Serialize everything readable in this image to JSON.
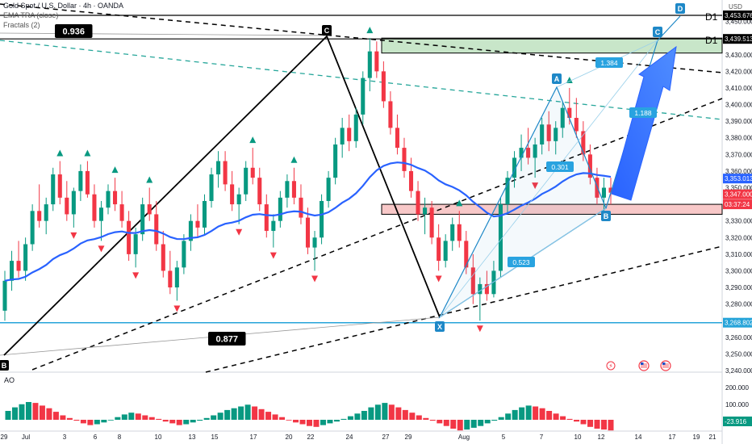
{
  "header": {
    "symbol_line": "Gold Spot / U.S. Dollar · 4h · OANDA",
    "indicator_line": "EMA TRA (close)",
    "fractals_line": "Fractals (2)",
    "currency": "USD"
  },
  "price_tags": {
    "top": "3,453.676",
    "d1": "3,439.513",
    "current_a": "3,353.013",
    "current_b": "3,347.000",
    "countdown": "03:37:24",
    "support": "3,268.802",
    "ao_value": "-23.916"
  },
  "labels": {
    "fib_upper": "0.936",
    "fib_lower": "0.877",
    "d1": "D1",
    "ratio_1384": "1.384",
    "ratio_0301": "0.301",
    "ratio_0523": "0.523",
    "ratio_box": "1.188",
    "point_B_left": "B",
    "point_C": "C",
    "point_X": "X",
    "point_A": "A",
    "point_B_right": "B",
    "point_C_right": "C",
    "point_D": "D",
    "ao_label": "AO"
  },
  "chart_data": {
    "type": "candlestick",
    "symbol": "XAUUSD",
    "timeframe": "4h",
    "y_axis": {
      "min": 3240,
      "max": 3460,
      "ticks": [
        3450,
        3440,
        3430,
        3420,
        3410,
        3400,
        3390,
        3380,
        3370,
        3360,
        3350,
        3340,
        3330,
        3320,
        3310,
        3300,
        3290,
        3280,
        3270,
        3260,
        3250,
        3240
      ]
    },
    "y_tick_labels": [
      "3,450.000",
      "3,440.000",
      "3,430.000",
      "3,420.000",
      "3,410.000",
      "3,400.000",
      "3,390.000",
      "3,380.000",
      "3,370.000",
      "3,360.000",
      "3,350.000",
      "3,340.000",
      "3,330.000",
      "3,320.000",
      "3,310.000",
      "3,300.000",
      "3,290.000",
      "3,280.000",
      "3,270.000",
      "3,260.000",
      "3,250.000",
      "3,240.000"
    ],
    "x_tick_labels": [
      "29",
      "Jul",
      "3",
      "6",
      "8",
      "10",
      "13",
      "15",
      "17",
      "20",
      "22",
      "24",
      "27",
      "29",
      "Aug",
      "5",
      "7",
      "10",
      "12",
      "14",
      "17",
      "19",
      "21"
    ],
    "ao_ticks": [
      "200.000",
      "100.000",
      "0.000"
    ],
    "key_levels": [
      {
        "label": "D1",
        "price": 3453.676
      },
      {
        "label": "D1",
        "price": 3439.513
      },
      {
        "label": "support",
        "price": 3268.802
      }
    ],
    "harmonic_points": [
      {
        "label": "X",
        "price": 3268
      },
      {
        "label": "A",
        "price": 3409
      },
      {
        "label": "B",
        "price": 3337
      },
      {
        "label": "C",
        "price": 3440
      },
      {
        "label": "D",
        "price": 3458
      }
    ],
    "zones": [
      {
        "name": "resistance",
        "top": 3440,
        "bottom": 3431,
        "color": "#c8e6c9"
      },
      {
        "name": "support",
        "top": 3340,
        "bottom": 3334,
        "color": "#f8c8c8"
      }
    ],
    "candles": [
      [
        3276,
        3300,
        3270,
        3294
      ],
      [
        3294,
        3312,
        3288,
        3306
      ],
      [
        3306,
        3318,
        3296,
        3300
      ],
      [
        3300,
        3320,
        3294,
        3316
      ],
      [
        3316,
        3340,
        3312,
        3336
      ],
      [
        3336,
        3352,
        3326,
        3330
      ],
      [
        3330,
        3344,
        3322,
        3340
      ],
      [
        3340,
        3362,
        3336,
        3358
      ],
      [
        3358,
        3366,
        3340,
        3344
      ],
      [
        3344,
        3354,
        3330,
        3334
      ],
      [
        3334,
        3350,
        3326,
        3348
      ],
      [
        3348,
        3364,
        3342,
        3360
      ],
      [
        3360,
        3366,
        3344,
        3346
      ],
      [
        3346,
        3352,
        3326,
        3330
      ],
      [
        3330,
        3342,
        3318,
        3338
      ],
      [
        3338,
        3352,
        3334,
        3348
      ],
      [
        3348,
        3356,
        3336,
        3340
      ],
      [
        3340,
        3348,
        3326,
        3330
      ],
      [
        3330,
        3336,
        3306,
        3310
      ],
      [
        3310,
        3326,
        3302,
        3322
      ],
      [
        3322,
        3344,
        3318,
        3340
      ],
      [
        3340,
        3350,
        3330,
        3334
      ],
      [
        3334,
        3342,
        3312,
        3316
      ],
      [
        3316,
        3324,
        3296,
        3300
      ],
      [
        3300,
        3312,
        3286,
        3290
      ],
      [
        3290,
        3306,
        3282,
        3302
      ],
      [
        3302,
        3322,
        3298,
        3318
      ],
      [
        3318,
        3334,
        3312,
        3330
      ],
      [
        3330,
        3340,
        3320,
        3326
      ],
      [
        3326,
        3346,
        3322,
        3342
      ],
      [
        3342,
        3362,
        3338,
        3358
      ],
      [
        3358,
        3372,
        3350,
        3366
      ],
      [
        3366,
        3372,
        3348,
        3352
      ],
      [
        3352,
        3360,
        3336,
        3340
      ],
      [
        3340,
        3350,
        3328,
        3346
      ],
      [
        3346,
        3366,
        3342,
        3362
      ],
      [
        3362,
        3374,
        3352,
        3356
      ],
      [
        3356,
        3362,
        3336,
        3340
      ],
      [
        3340,
        3346,
        3320,
        3324
      ],
      [
        3324,
        3334,
        3314,
        3330
      ],
      [
        3330,
        3348,
        3326,
        3344
      ],
      [
        3344,
        3358,
        3338,
        3354
      ],
      [
        3354,
        3362,
        3340,
        3344
      ],
      [
        3344,
        3352,
        3328,
        3332
      ],
      [
        3332,
        3338,
        3310,
        3314
      ],
      [
        3314,
        3324,
        3300,
        3320
      ],
      [
        3320,
        3346,
        3316,
        3342
      ],
      [
        3342,
        3360,
        3338,
        3356
      ],
      [
        3356,
        3380,
        3352,
        3376
      ],
      [
        3376,
        3392,
        3368,
        3386
      ],
      [
        3386,
        3394,
        3372,
        3378
      ],
      [
        3378,
        3398,
        3374,
        3394
      ],
      [
        3394,
        3420,
        3388,
        3416
      ],
      [
        3416,
        3440,
        3408,
        3432
      ],
      [
        3432,
        3438,
        3416,
        3420
      ],
      [
        3420,
        3426,
        3398,
        3402
      ],
      [
        3402,
        3408,
        3382,
        3386
      ],
      [
        3386,
        3394,
        3370,
        3374
      ],
      [
        3374,
        3380,
        3356,
        3360
      ],
      [
        3360,
        3368,
        3344,
        3348
      ],
      [
        3348,
        3354,
        3330,
        3334
      ],
      [
        3334,
        3344,
        3322,
        3338
      ],
      [
        3338,
        3342,
        3316,
        3320
      ],
      [
        3320,
        3328,
        3300,
        3306
      ],
      [
        3306,
        3322,
        3302,
        3318
      ],
      [
        3318,
        3332,
        3312,
        3328
      ],
      [
        3328,
        3336,
        3314,
        3318
      ],
      [
        3318,
        3324,
        3298,
        3302
      ],
      [
        3302,
        3310,
        3280,
        3286
      ],
      [
        3286,
        3296,
        3270,
        3292
      ],
      [
        3292,
        3300,
        3282,
        3286
      ],
      [
        3286,
        3306,
        3284,
        3300
      ],
      [
        3300,
        3344,
        3296,
        3340
      ],
      [
        3340,
        3360,
        3334,
        3356
      ],
      [
        3356,
        3372,
        3350,
        3368
      ],
      [
        3368,
        3382,
        3360,
        3374
      ],
      [
        3374,
        3386,
        3364,
        3368
      ],
      [
        3368,
        3380,
        3356,
        3376
      ],
      [
        3376,
        3392,
        3370,
        3388
      ],
      [
        3388,
        3396,
        3372,
        3378
      ],
      [
        3378,
        3390,
        3370,
        3386
      ],
      [
        3386,
        3402,
        3380,
        3398
      ],
      [
        3398,
        3410,
        3388,
        3392
      ],
      [
        3392,
        3404,
        3380,
        3384
      ],
      [
        3384,
        3390,
        3366,
        3370
      ],
      [
        3370,
        3376,
        3352,
        3356
      ],
      [
        3356,
        3362,
        3340,
        3344
      ],
      [
        3344,
        3356,
        3336,
        3350
      ],
      [
        3350,
        3356,
        3340,
        3347
      ]
    ],
    "ao_histogram": [
      20,
      28,
      35,
      40,
      38,
      32,
      26,
      18,
      10,
      4,
      -2,
      -8,
      -12,
      -10,
      -6,
      0,
      6,
      12,
      16,
      14,
      10,
      6,
      2,
      -4,
      -8,
      -12,
      -10,
      -6,
      -2,
      4,
      10,
      16,
      22,
      26,
      30,
      34,
      30,
      24,
      18,
      12,
      6,
      0,
      -6,
      -10,
      -14,
      -16,
      -12,
      -8,
      -4,
      2,
      8,
      14,
      20,
      28,
      34,
      38,
      34,
      28,
      22,
      16,
      10,
      4,
      -2,
      -8,
      -14,
      -20,
      -24,
      -22,
      -18,
      -14,
      -8,
      -2,
      6,
      14,
      22,
      28,
      32,
      30,
      26,
      20,
      14,
      8,
      2,
      -4,
      -10,
      -16,
      -20,
      -22,
      -24
    ]
  },
  "colors": {
    "bull": "#089981",
    "bear": "#f23645",
    "ema": "#2962ff",
    "harmonic": "#1e88c7",
    "fractal_up": "#089981",
    "fractal_down": "#f23645",
    "ao_up": "#089981",
    "ao_down": "#f23645"
  },
  "icons": [
    "flash-icon",
    "flag-us-icon",
    "flag-us-icon"
  ]
}
